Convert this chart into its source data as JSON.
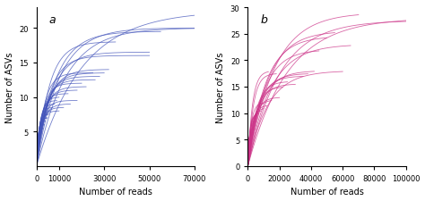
{
  "panel_a": {
    "label": "a",
    "color": "#4455bb",
    "xmax": 70000,
    "ymin": 0,
    "ymax": 23,
    "yticks": [
      5,
      10,
      15,
      20
    ],
    "xticks": [
      0,
      10000,
      30000,
      50000,
      70000
    ],
    "xlabel": "Number of reads",
    "ylabel": "Number of ASVs",
    "curves": [
      {
        "xend": 70000,
        "asymptote": 20.0,
        "rate": 8e-05
      },
      {
        "xend": 70000,
        "asymptote": 20.0,
        "rate": 0.0001
      },
      {
        "xend": 70000,
        "asymptote": 22.5,
        "rate": 5e-05
      },
      {
        "xend": 55000,
        "asymptote": 19.5,
        "rate": 0.00012
      },
      {
        "xend": 50000,
        "asymptote": 16.5,
        "rate": 0.00015
      },
      {
        "xend": 50000,
        "asymptote": 16.0,
        "rate": 0.00018
      },
      {
        "xend": 35000,
        "asymptote": 18.0,
        "rate": 0.00018
      },
      {
        "xend": 32000,
        "asymptote": 14.0,
        "rate": 0.0002
      },
      {
        "xend": 30000,
        "asymptote": 13.5,
        "rate": 0.00022
      },
      {
        "xend": 28000,
        "asymptote": 13.0,
        "rate": 0.00025
      },
      {
        "xend": 26000,
        "asymptote": 12.5,
        "rate": 0.00028
      },
      {
        "xend": 25000,
        "asymptote": 13.5,
        "rate": 0.0003
      },
      {
        "xend": 22000,
        "asymptote": 11.5,
        "rate": 0.0003
      },
      {
        "xend": 20000,
        "asymptote": 12.0,
        "rate": 0.00035
      },
      {
        "xend": 18000,
        "asymptote": 11.0,
        "rate": 0.00035
      },
      {
        "xend": 18000,
        "asymptote": 9.5,
        "rate": 0.0004
      },
      {
        "xend": 15000,
        "asymptote": 9.0,
        "rate": 0.0004
      },
      {
        "xend": 14000,
        "asymptote": 10.5,
        "rate": 0.00045
      },
      {
        "xend": 12000,
        "asymptote": 8.5,
        "rate": 0.0005
      },
      {
        "xend": 10000,
        "asymptote": 10.0,
        "rate": 0.00055
      },
      {
        "xend": 10000,
        "asymptote": 8.0,
        "rate": 0.0006
      },
      {
        "xend": 9000,
        "asymptote": 9.5,
        "rate": 0.00065
      },
      {
        "xend": 8000,
        "asymptote": 9.0,
        "rate": 0.0007
      },
      {
        "xend": 7000,
        "asymptote": 8.5,
        "rate": 0.0008
      },
      {
        "xend": 6000,
        "asymptote": 8.0,
        "rate": 0.0009
      },
      {
        "xend": 5500,
        "asymptote": 7.5,
        "rate": 0.001
      },
      {
        "xend": 5000,
        "asymptote": 7.0,
        "rate": 0.0011
      },
      {
        "xend": 4500,
        "asymptote": 7.0,
        "rate": 0.0012
      },
      {
        "xend": 4000,
        "asymptote": 6.5,
        "rate": 0.0014
      },
      {
        "xend": 3500,
        "asymptote": 6.0,
        "rate": 0.0016
      },
      {
        "xend": 3000,
        "asymptote": 5.5,
        "rate": 0.0018
      },
      {
        "xend": 2500,
        "asymptote": 5.0,
        "rate": 0.0022
      },
      {
        "xend": 2000,
        "asymptote": 4.5,
        "rate": 0.0028
      },
      {
        "xend": 1500,
        "asymptote": 3.5,
        "rate": 0.0035
      },
      {
        "xend": 1200,
        "asymptote": 3.0,
        "rate": 0.0045
      },
      {
        "xend": 800,
        "asymptote": 2.5,
        "rate": 0.006
      }
    ]
  },
  "panel_b": {
    "label": "b",
    "color": "#cc3388",
    "xmax": 100000,
    "ymin": 0,
    "ymax": 30,
    "yticks": [
      0,
      5,
      10,
      15,
      20,
      25,
      30
    ],
    "xticks": [
      0,
      20000,
      40000,
      60000,
      80000,
      100000
    ],
    "xlabel": "Number of reads",
    "ylabel": "Number of ASVs",
    "curves": [
      {
        "xend": 100000,
        "asymptote": 28.0,
        "rate": 4e-05
      },
      {
        "xend": 100000,
        "asymptote": 27.5,
        "rate": 5e-05
      },
      {
        "xend": 70000,
        "asymptote": 29.0,
        "rate": 6e-05
      },
      {
        "xend": 65000,
        "asymptote": 23.0,
        "rate": 7e-05
      },
      {
        "xend": 60000,
        "asymptote": 18.0,
        "rate": 8e-05
      },
      {
        "xend": 55000,
        "asymptote": 25.5,
        "rate": 8e-05
      },
      {
        "xend": 50000,
        "asymptote": 24.5,
        "rate": 9e-05
      },
      {
        "xend": 45000,
        "asymptote": 22.0,
        "rate": 0.0001
      },
      {
        "xend": 42000,
        "asymptote": 18.0,
        "rate": 0.00012
      },
      {
        "xend": 38000,
        "asymptote": 17.5,
        "rate": 0.00014
      },
      {
        "xend": 35000,
        "asymptote": 17.0,
        "rate": 0.00016
      },
      {
        "xend": 30000,
        "asymptote": 15.5,
        "rate": 0.00018
      },
      {
        "xend": 25000,
        "asymptote": 16.0,
        "rate": 0.0002
      },
      {
        "xend": 22000,
        "asymptote": 15.0,
        "rate": 0.00022
      },
      {
        "xend": 20000,
        "asymptote": 13.0,
        "rate": 0.00026
      },
      {
        "xend": 18000,
        "asymptote": 17.5,
        "rate": 0.0003
      },
      {
        "xend": 15000,
        "asymptote": 12.5,
        "rate": 0.0003
      },
      {
        "xend": 13000,
        "asymptote": 18.0,
        "rate": 0.00035
      },
      {
        "xend": 12000,
        "asymptote": 11.5,
        "rate": 0.00038
      },
      {
        "xend": 10000,
        "asymptote": 11.0,
        "rate": 0.00042
      },
      {
        "xend": 9000,
        "asymptote": 12.0,
        "rate": 0.0005
      },
      {
        "xend": 8000,
        "asymptote": 10.5,
        "rate": 0.00055
      },
      {
        "xend": 7000,
        "asymptote": 10.0,
        "rate": 0.00065
      },
      {
        "xend": 6000,
        "asymptote": 10.0,
        "rate": 0.00075
      },
      {
        "xend": 5000,
        "asymptote": 9.5,
        "rate": 0.0009
      },
      {
        "xend": 4500,
        "asymptote": 8.5,
        "rate": 0.001
      },
      {
        "xend": 4000,
        "asymptote": 7.5,
        "rate": 0.0012
      },
      {
        "xend": 3500,
        "asymptote": 7.0,
        "rate": 0.0014
      },
      {
        "xend": 3000,
        "asymptote": 6.5,
        "rate": 0.0017
      },
      {
        "xend": 2500,
        "asymptote": 6.0,
        "rate": 0.0022
      },
      {
        "xend": 2000,
        "asymptote": 5.0,
        "rate": 0.0028
      },
      {
        "xend": 1500,
        "asymptote": 4.0,
        "rate": 0.0038
      },
      {
        "xend": 1000,
        "asymptote": 3.0,
        "rate": 0.005
      },
      {
        "xend": 700,
        "asymptote": 2.5,
        "rate": 0.007
      }
    ]
  },
  "bg_color": "#ffffff",
  "linewidth": 0.6,
  "alpha": 0.75
}
